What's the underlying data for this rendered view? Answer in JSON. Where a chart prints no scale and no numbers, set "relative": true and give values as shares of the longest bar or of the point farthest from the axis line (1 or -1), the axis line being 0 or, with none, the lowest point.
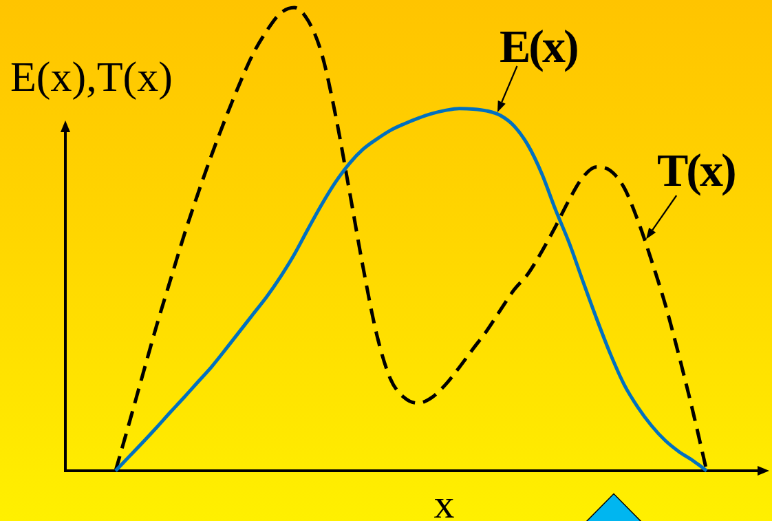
{
  "chart_data": {
    "type": "line",
    "relative": true,
    "xlabel": "x",
    "ylabel": "E(x),T(x)",
    "legend": false,
    "grid": false,
    "tick_labels": false,
    "marker": "none",
    "categories": [
      null,
      null,
      null,
      null,
      null,
      null,
      null,
      null,
      null,
      null,
      null,
      null,
      null,
      null,
      null,
      null,
      null,
      null,
      null,
      null,
      null,
      null,
      null,
      null,
      null,
      null,
      null,
      null,
      null,
      null,
      null,
      null,
      null,
      null,
      null,
      null,
      null,
      null,
      null,
      null,
      null,
      null,
      null,
      null
    ],
    "series": [
      {
        "name": "E(x)",
        "color": "#0070c0",
        "line_style": "solid",
        "values": [
          0,
          0.031,
          0.062,
          0.094,
          0.127,
          0.159,
          0.192,
          0.225,
          0.262,
          0.3,
          0.338,
          0.376,
          0.419,
          0.467,
          0.522,
          0.575,
          0.623,
          0.663,
          0.694,
          0.716,
          0.735,
          0.749,
          0.761,
          0.771,
          0.778,
          0.782,
          0.781,
          0.777,
          0.767,
          0.744,
          0.703,
          0.642,
          0.564,
          0.492,
          0.409,
          0.328,
          0.252,
          0.186,
          0.137,
          0.097,
          0.065,
          0.041,
          0.022,
          0
        ]
      },
      {
        "name": "T(x)",
        "color": "#000000",
        "line_style": "dashed",
        "values": [
          0,
          0.104,
          0.21,
          0.315,
          0.413,
          0.51,
          0.599,
          0.683,
          0.761,
          0.834,
          0.9,
          0.95,
          0.988,
          1,
          0.972,
          0.9,
          0.768,
          0.606,
          0.44,
          0.294,
          0.198,
          0.158,
          0.146,
          0.158,
          0.186,
          0.223,
          0.263,
          0.302,
          0.347,
          0.391,
          0.425,
          0.473,
          0.527,
          0.585,
          0.634,
          0.656,
          0.648,
          0.611,
          0.54,
          0.453,
          0.358,
          0.247,
          0.128,
          0
        ]
      }
    ]
  }
}
